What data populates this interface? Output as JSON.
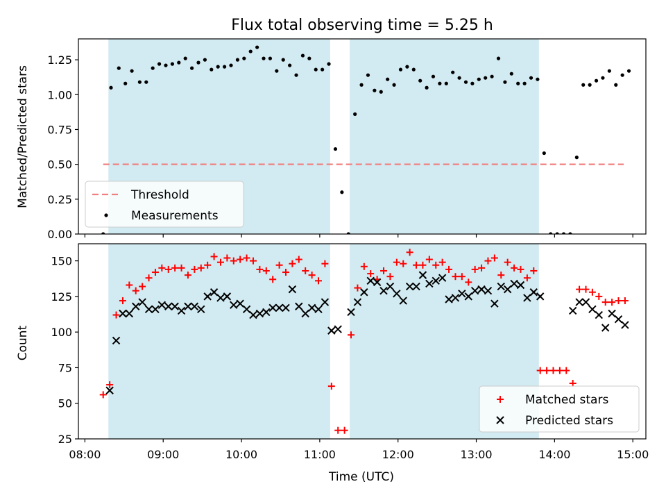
{
  "figure": {
    "title": "Flux total observing time = 5.25 h",
    "xlabel": "Time (UTC)",
    "x_ticks": [
      "08:00",
      "09:00",
      "10:00",
      "11:00",
      "12:00",
      "13:00",
      "14:00",
      "15:00"
    ],
    "shade_color": "#add8e6"
  },
  "chart_data": [
    {
      "type": "scatter",
      "panel": "top",
      "ylabel": "Matched/Predicted stars",
      "ylim": [
        0,
        1.4
      ],
      "xlim": [
        "07:55",
        "15:10"
      ],
      "y_ticks": [
        "0.00",
        "0.25",
        "0.50",
        "0.75",
        "1.00",
        "1.25"
      ],
      "shaded_intervals": [
        [
          "08:18",
          "11:08"
        ],
        [
          "11:23",
          "13:48"
        ]
      ],
      "threshold": {
        "name": "Threshold",
        "value": 0.5,
        "x_range": [
          "08:14",
          "14:53"
        ],
        "color": "#f08080"
      },
      "legend": {
        "placement": "lower-left",
        "entries": [
          "Threshold",
          "Measurements"
        ]
      },
      "series": [
        {
          "name": "Measurements",
          "color": "#000000",
          "points": [
            [
              "08:14",
              0.0
            ],
            [
              "08:20",
              1.05
            ],
            [
              "08:26",
              1.19
            ],
            [
              "08:31",
              1.08
            ],
            [
              "08:36",
              1.17
            ],
            [
              "08:42",
              1.09
            ],
            [
              "08:47",
              1.09
            ],
            [
              "08:52",
              1.19
            ],
            [
              "08:57",
              1.22
            ],
            [
              "09:02",
              1.21
            ],
            [
              "09:07",
              1.22
            ],
            [
              "09:12",
              1.23
            ],
            [
              "09:17",
              1.26
            ],
            [
              "09:22",
              1.19
            ],
            [
              "09:27",
              1.23
            ],
            [
              "09:32",
              1.25
            ],
            [
              "09:37",
              1.18
            ],
            [
              "09:42",
              1.2
            ],
            [
              "09:47",
              1.2
            ],
            [
              "09:52",
              1.21
            ],
            [
              "09:57",
              1.25
            ],
            [
              "10:02",
              1.26
            ],
            [
              "10:07",
              1.31
            ],
            [
              "10:12",
              1.34
            ],
            [
              "10:17",
              1.26
            ],
            [
              "10:22",
              1.26
            ],
            [
              "10:27",
              1.17
            ],
            [
              "10:32",
              1.25
            ],
            [
              "10:37",
              1.21
            ],
            [
              "10:42",
              1.14
            ],
            [
              "10:47",
              1.28
            ],
            [
              "10:52",
              1.26
            ],
            [
              "10:57",
              1.18
            ],
            [
              "11:02",
              1.18
            ],
            [
              "11:07",
              1.22
            ],
            [
              "11:12",
              0.61
            ],
            [
              "11:17",
              0.3
            ],
            [
              "11:22",
              0.0
            ],
            [
              "11:27",
              0.86
            ],
            [
              "11:32",
              1.07
            ],
            [
              "11:37",
              1.14
            ],
            [
              "11:42",
              1.03
            ],
            [
              "11:47",
              1.02
            ],
            [
              "11:52",
              1.11
            ],
            [
              "11:57",
              1.07
            ],
            [
              "12:02",
              1.18
            ],
            [
              "12:07",
              1.2
            ],
            [
              "12:12",
              1.18
            ],
            [
              "12:17",
              1.1
            ],
            [
              "12:22",
              1.05
            ],
            [
              "12:27",
              1.13
            ],
            [
              "12:32",
              1.08
            ],
            [
              "12:37",
              1.08
            ],
            [
              "12:42",
              1.16
            ],
            [
              "12:47",
              1.12
            ],
            [
              "12:52",
              1.09
            ],
            [
              "12:57",
              1.08
            ],
            [
              "13:02",
              1.11
            ],
            [
              "13:07",
              1.12
            ],
            [
              "13:12",
              1.13
            ],
            [
              "13:17",
              1.26
            ],
            [
              "13:22",
              1.09
            ],
            [
              "13:27",
              1.15
            ],
            [
              "13:32",
              1.08
            ],
            [
              "13:37",
              1.08
            ],
            [
              "13:42",
              1.12
            ],
            [
              "13:47",
              1.11
            ],
            [
              "13:52",
              0.58
            ],
            [
              "13:57",
              0.0
            ],
            [
              "14:02",
              0.0
            ],
            [
              "14:07",
              0.0
            ],
            [
              "14:12",
              0.0
            ],
            [
              "14:17",
              0.55
            ],
            [
              "14:22",
              1.07
            ],
            [
              "14:27",
              1.07
            ],
            [
              "14:32",
              1.1
            ],
            [
              "14:37",
              1.12
            ],
            [
              "14:42",
              1.17
            ],
            [
              "14:47",
              1.07
            ],
            [
              "14:52",
              1.14
            ],
            [
              "14:57",
              1.17
            ]
          ]
        }
      ]
    },
    {
      "type": "scatter",
      "panel": "bottom",
      "ylabel": "Count",
      "ylim": [
        25,
        162
      ],
      "xlim": [
        "07:55",
        "15:10"
      ],
      "y_ticks": [
        "25",
        "50",
        "75",
        "100",
        "125",
        "150"
      ],
      "shaded_intervals": [
        [
          "08:18",
          "11:08"
        ],
        [
          "11:23",
          "13:48"
        ]
      ],
      "legend": {
        "placement": "lower-right",
        "entries": [
          "Matched stars",
          "Predicted stars"
        ]
      },
      "series": [
        {
          "name": "Matched stars",
          "marker": "+",
          "color": "#ff0000",
          "points": [
            [
              "08:14",
              56
            ],
            [
              "08:19",
              63
            ],
            [
              "08:24",
              112
            ],
            [
              "08:29",
              122
            ],
            [
              "08:34",
              133
            ],
            [
              "08:39",
              129
            ],
            [
              "08:44",
              132
            ],
            [
              "08:49",
              138
            ],
            [
              "08:54",
              142
            ],
            [
              "08:59",
              145
            ],
            [
              "09:04",
              144
            ],
            [
              "09:09",
              145
            ],
            [
              "09:14",
              145
            ],
            [
              "09:19",
              140
            ],
            [
              "09:24",
              144
            ],
            [
              "09:29",
              145
            ],
            [
              "09:34",
              147
            ],
            [
              "09:39",
              153
            ],
            [
              "09:44",
              149
            ],
            [
              "09:49",
              152
            ],
            [
              "09:54",
              150
            ],
            [
              "09:59",
              151
            ],
            [
              "10:04",
              152
            ],
            [
              "10:09",
              150
            ],
            [
              "10:14",
              144
            ],
            [
              "10:19",
              143
            ],
            [
              "10:24",
              137
            ],
            [
              "10:29",
              147
            ],
            [
              "10:34",
              142
            ],
            [
              "10:39",
              148
            ],
            [
              "10:44",
              151
            ],
            [
              "10:49",
              143
            ],
            [
              "10:54",
              140
            ],
            [
              "10:59",
              136
            ],
            [
              "11:04",
              148
            ],
            [
              "11:09",
              62
            ],
            [
              "11:14",
              31
            ],
            [
              "11:19",
              31
            ],
            [
              "11:24",
              98
            ],
            [
              "11:29",
              131
            ],
            [
              "11:34",
              146
            ],
            [
              "11:39",
              141
            ],
            [
              "11:44",
              137
            ],
            [
              "11:49",
              143
            ],
            [
              "11:54",
              139
            ],
            [
              "11:59",
              149
            ],
            [
              "12:04",
              148
            ],
            [
              "12:09",
              156
            ],
            [
              "12:14",
              147
            ],
            [
              "12:19",
              147
            ],
            [
              "12:24",
              151
            ],
            [
              "12:29",
              147
            ],
            [
              "12:34",
              149
            ],
            [
              "12:39",
              144
            ],
            [
              "12:44",
              139
            ],
            [
              "12:49",
              139
            ],
            [
              "12:54",
              135
            ],
            [
              "12:59",
              144
            ],
            [
              "13:04",
              145
            ],
            [
              "13:09",
              150
            ],
            [
              "13:14",
              152
            ],
            [
              "13:19",
              140
            ],
            [
              "13:24",
              149
            ],
            [
              "13:29",
              145
            ],
            [
              "13:34",
              144
            ],
            [
              "13:39",
              138
            ],
            [
              "13:44",
              143
            ],
            [
              "13:49",
              73
            ],
            [
              "13:54",
              73
            ],
            [
              "13:59",
              73
            ],
            [
              "14:04",
              73
            ],
            [
              "14:09",
              73
            ],
            [
              "14:14",
              64
            ],
            [
              "14:19",
              130
            ],
            [
              "14:24",
              130
            ],
            [
              "14:29",
              128
            ],
            [
              "14:34",
              125
            ],
            [
              "14:39",
              121
            ],
            [
              "14:44",
              121
            ],
            [
              "14:49",
              122
            ],
            [
              "14:54",
              122
            ]
          ]
        },
        {
          "name": "Predicted stars",
          "marker": "x",
          "color": "#000000",
          "points": [
            [
              "08:19",
              59
            ],
            [
              "08:24",
              94
            ],
            [
              "08:29",
              113
            ],
            [
              "08:34",
              113
            ],
            [
              "08:39",
              118
            ],
            [
              "08:44",
              121
            ],
            [
              "08:49",
              116
            ],
            [
              "08:54",
              116
            ],
            [
              "08:59",
              119
            ],
            [
              "09:04",
              118
            ],
            [
              "09:09",
              118
            ],
            [
              "09:14",
              115
            ],
            [
              "09:19",
              118
            ],
            [
              "09:24",
              118
            ],
            [
              "09:29",
              116
            ],
            [
              "09:34",
              125
            ],
            [
              "09:39",
              128
            ],
            [
              "09:44",
              124
            ],
            [
              "09:49",
              125
            ],
            [
              "09:54",
              119
            ],
            [
              "09:59",
              120
            ],
            [
              "10:04",
              116
            ],
            [
              "10:09",
              112
            ],
            [
              "10:14",
              113
            ],
            [
              "10:19",
              114
            ],
            [
              "10:24",
              117
            ],
            [
              "10:29",
              117
            ],
            [
              "10:34",
              117
            ],
            [
              "10:39",
              130
            ],
            [
              "10:44",
              118
            ],
            [
              "10:49",
              113
            ],
            [
              "10:54",
              117
            ],
            [
              "10:59",
              116
            ],
            [
              "11:04",
              121
            ],
            [
              "11:09",
              101
            ],
            [
              "11:14",
              102
            ],
            [
              "11:24",
              114
            ],
            [
              "11:29",
              121
            ],
            [
              "11:34",
              128
            ],
            [
              "11:39",
              136
            ],
            [
              "11:44",
              135
            ],
            [
              "11:49",
              129
            ],
            [
              "11:54",
              132
            ],
            [
              "11:59",
              127
            ],
            [
              "12:04",
              122
            ],
            [
              "12:09",
              132
            ],
            [
              "12:14",
              132
            ],
            [
              "12:19",
              140
            ],
            [
              "12:24",
              134
            ],
            [
              "12:29",
              136
            ],
            [
              "12:34",
              138
            ],
            [
              "12:39",
              123
            ],
            [
              "12:44",
              124
            ],
            [
              "12:49",
              127
            ],
            [
              "12:54",
              125
            ],
            [
              "12:59",
              129
            ],
            [
              "13:04",
              130
            ],
            [
              "13:09",
              129
            ],
            [
              "13:14",
              120
            ],
            [
              "13:19",
              132
            ],
            [
              "13:24",
              130
            ],
            [
              "13:29",
              134
            ],
            [
              "13:34",
              133
            ],
            [
              "13:39",
              124
            ],
            [
              "13:44",
              128
            ],
            [
              "13:49",
              125
            ],
            [
              "14:14",
              115
            ],
            [
              "14:19",
              121
            ],
            [
              "14:24",
              121
            ],
            [
              "14:29",
              116
            ],
            [
              "14:34",
              112
            ],
            [
              "14:39",
              103
            ],
            [
              "14:44",
              113
            ],
            [
              "14:49",
              109
            ],
            [
              "14:54",
              105
            ]
          ]
        }
      ]
    }
  ]
}
